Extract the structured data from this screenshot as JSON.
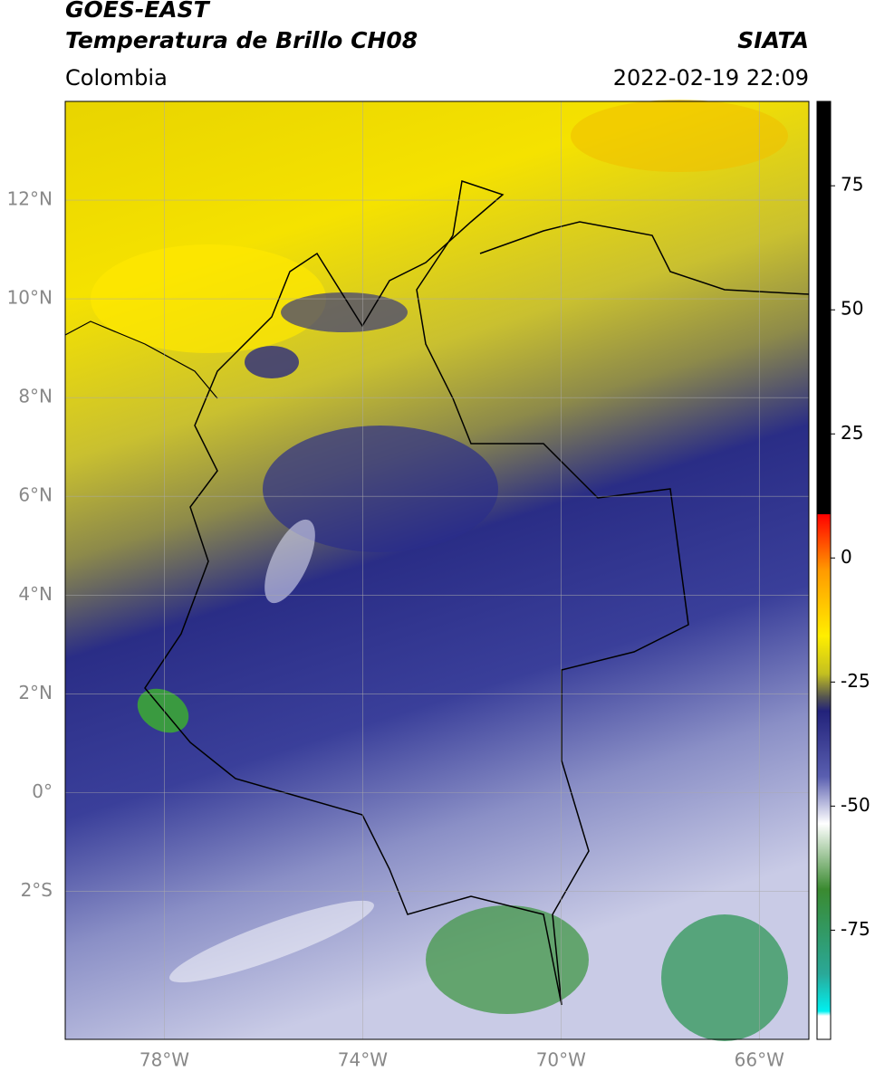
{
  "header": {
    "satellite": "GOES-EAST",
    "product": "Temperatura de Brillo CH08",
    "source": "SIATA",
    "region": "Colombia",
    "timestamp": "2022-02-19 22:09"
  },
  "map": {
    "lon_range": [
      -80,
      -65
    ],
    "lat_range": [
      -5,
      14
    ],
    "lat_ticks": [
      {
        "value": 12,
        "label": "12°N"
      },
      {
        "value": 10,
        "label": "10°N"
      },
      {
        "value": 8,
        "label": "8°N"
      },
      {
        "value": 6,
        "label": "6°N"
      },
      {
        "value": 4,
        "label": "4°N"
      },
      {
        "value": 2,
        "label": "2°N"
      },
      {
        "value": 0,
        "label": "0°"
      },
      {
        "value": -2,
        "label": "2°S"
      }
    ],
    "lon_ticks": [
      {
        "value": -78,
        "label": "78°W"
      },
      {
        "value": -74,
        "label": "74°W"
      },
      {
        "value": -70,
        "label": "70°W"
      },
      {
        "value": -66,
        "label": "66°W"
      }
    ]
  },
  "colorbar": {
    "range": [
      -97,
      92
    ],
    "ticks": [
      75,
      50,
      25,
      0,
      -25,
      -50,
      -75
    ]
  }
}
